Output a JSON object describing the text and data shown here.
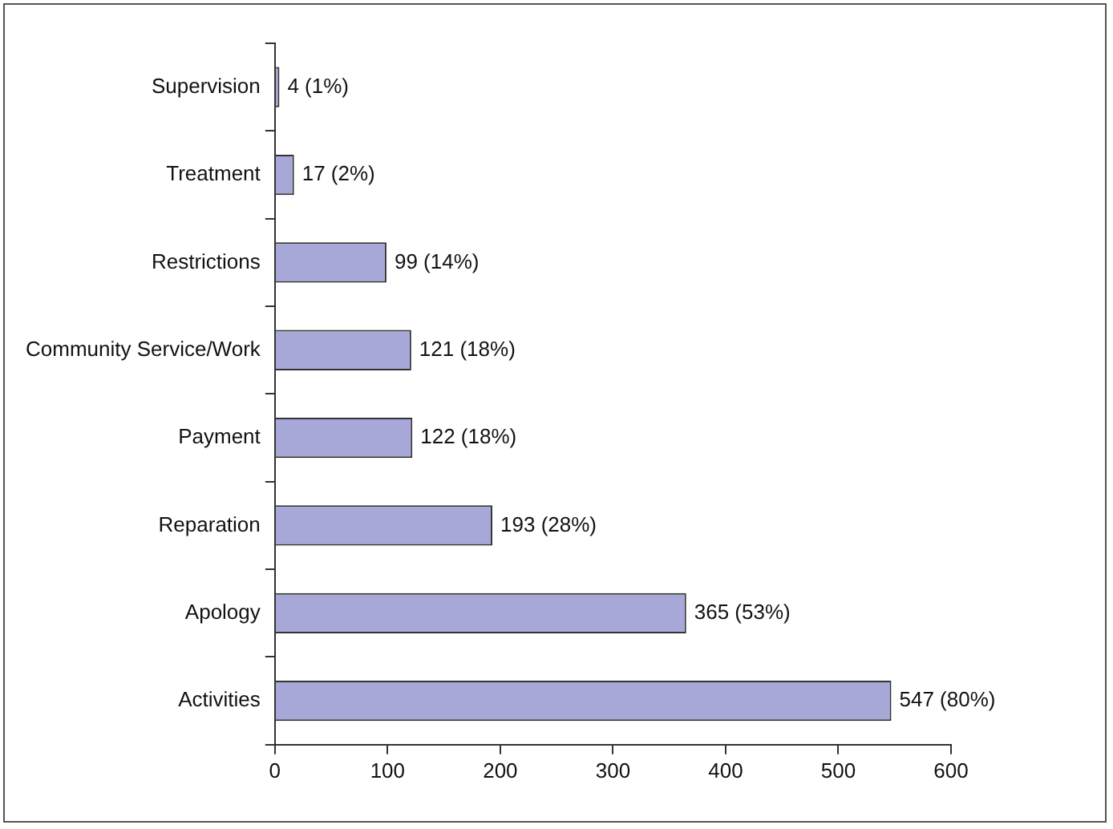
{
  "chart_data": {
    "type": "bar",
    "orientation": "horizontal",
    "categories": [
      "Supervision",
      "Treatment",
      "Restrictions",
      "Community Service/Work",
      "Payment",
      "Reparation",
      "Apology",
      "Activities"
    ],
    "values": [
      4,
      17,
      99,
      121,
      122,
      193,
      365,
      547
    ],
    "value_labels": [
      "4 (1%)",
      "17 (2%)",
      "99 (14%)",
      "121 (18%)",
      "122 (18%)",
      "193 (28%)",
      "365 (53%)",
      "547 (80%)"
    ],
    "color": "#a8a8d8",
    "xlim": [
      0,
      600
    ],
    "xticks": [
      0,
      100,
      200,
      300,
      400,
      500,
      600
    ],
    "grid": false,
    "legend": false
  }
}
